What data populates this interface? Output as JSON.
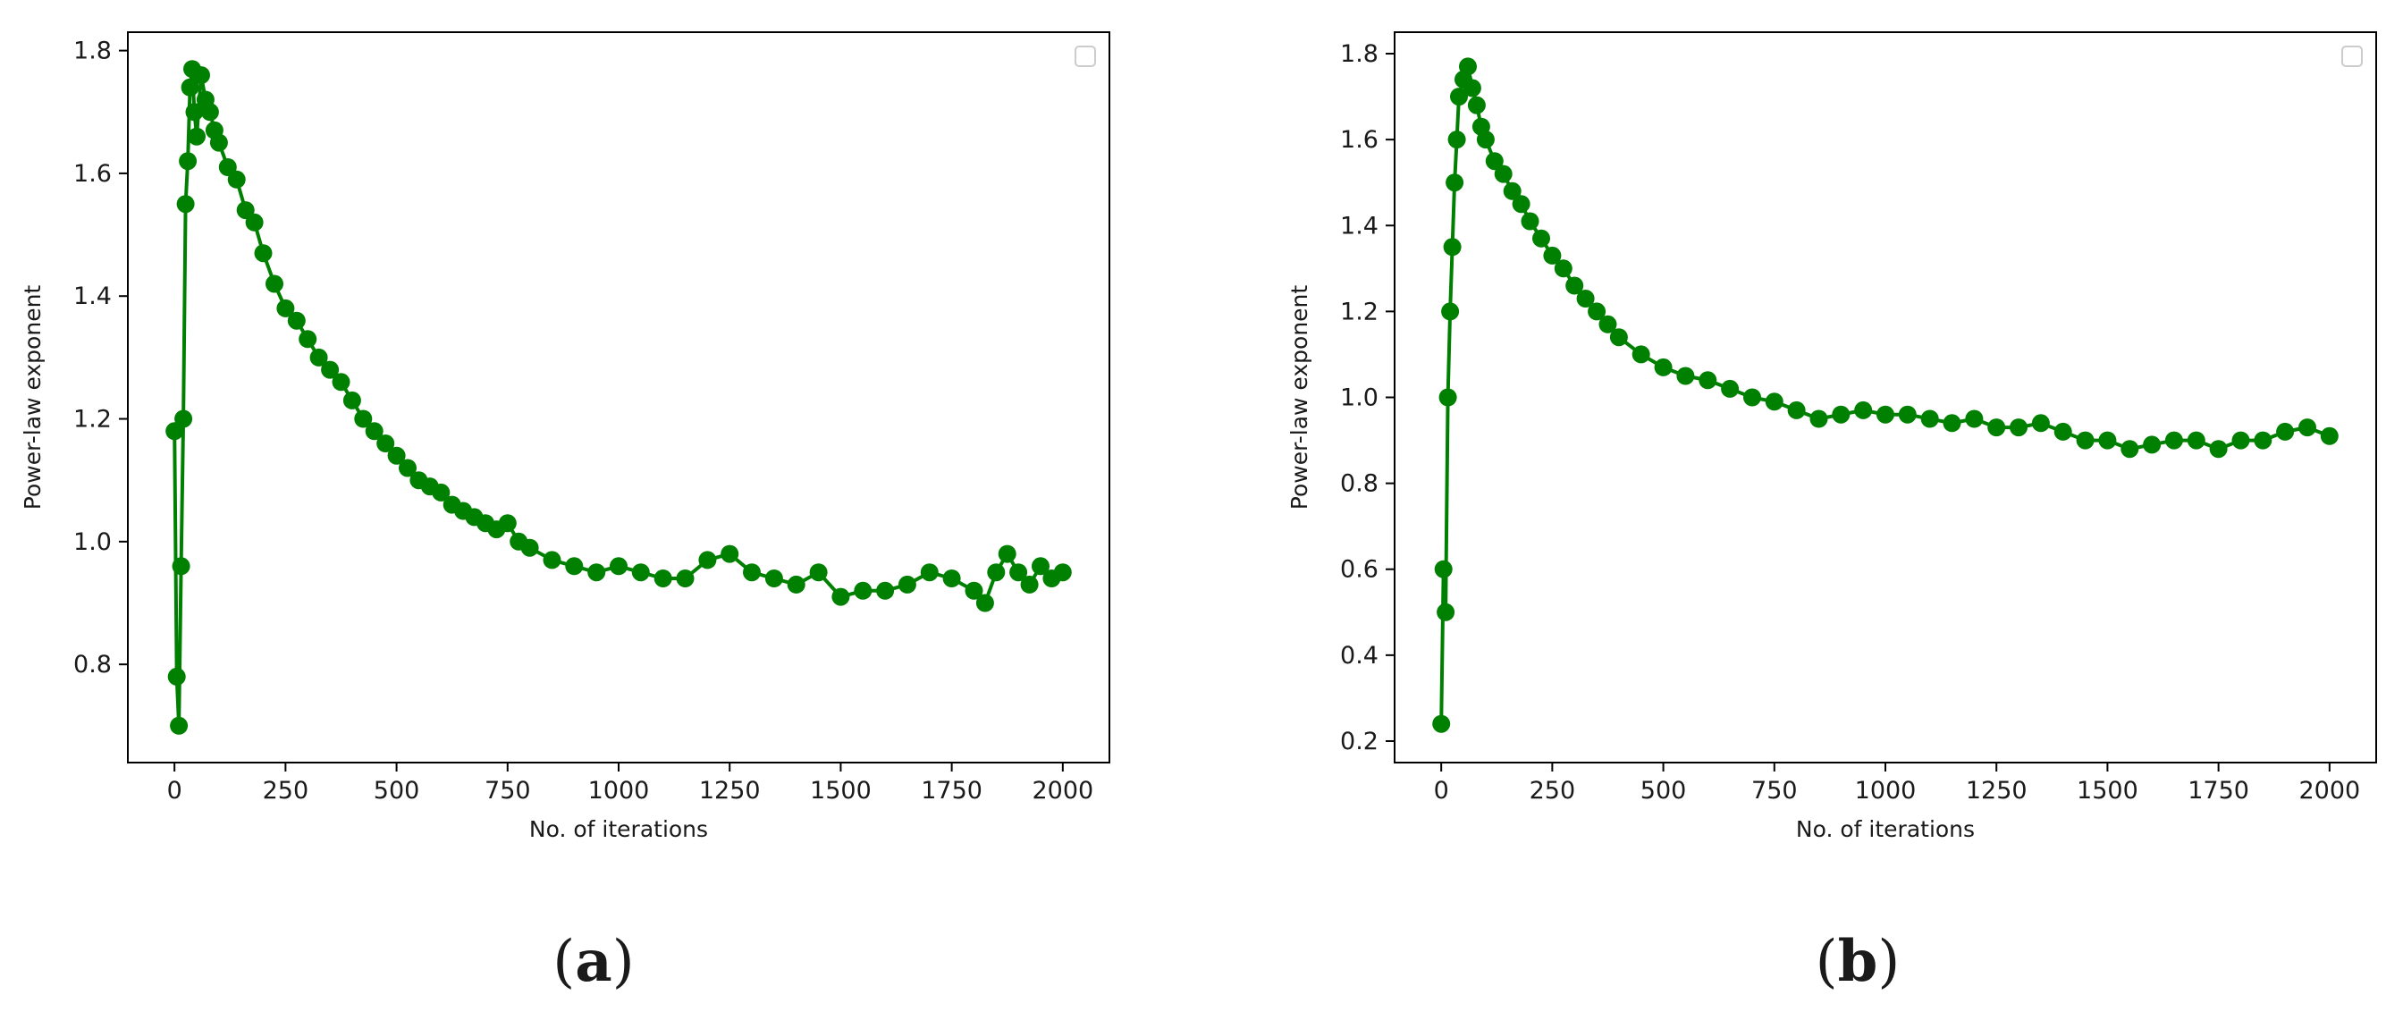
{
  "figure": {
    "panels": [
      {
        "caption_open": "(",
        "caption_letter": "a",
        "caption_close": ")"
      },
      {
        "caption_open": "(",
        "caption_letter": "b",
        "caption_close": ")"
      }
    ]
  },
  "chart_data": [
    {
      "type": "line",
      "marker": "circle",
      "color": "#008000",
      "title": "",
      "xlabel": "No. of iterations",
      "ylabel": "Power-law exponent",
      "xlim": [
        -105,
        2105
      ],
      "ylim": [
        0.64,
        1.83
      ],
      "xticks": [
        0,
        250,
        500,
        750,
        1000,
        1250,
        1500,
        1750,
        2000
      ],
      "xtick_labels": [
        "0",
        "250",
        "500",
        "750",
        "1000",
        "1250",
        "1500",
        "1750",
        "2000"
      ],
      "yticks": [
        0.8,
        1.0,
        1.2,
        1.4,
        1.6,
        1.8
      ],
      "ytick_labels": [
        "0.8",
        "1.0",
        "1.2",
        "1.4",
        "1.6",
        "1.8"
      ],
      "legend": "top-right (empty)",
      "grid": false,
      "series": [
        {
          "x": [
            0,
            5,
            10,
            15,
            20,
            25,
            30,
            35,
            40,
            45,
            50,
            60,
            70,
            80,
            90,
            100,
            120,
            140,
            160,
            180,
            200,
            225,
            250,
            275,
            300,
            325,
            350,
            375,
            400,
            425,
            450,
            475,
            500,
            525,
            550,
            575,
            600,
            625,
            650,
            675,
            700,
            725,
            750,
            775,
            800,
            850,
            900,
            950,
            1000,
            1050,
            1100,
            1150,
            1200,
            1250,
            1300,
            1350,
            1400,
            1450,
            1500,
            1550,
            1600,
            1650,
            1700,
            1750,
            1800,
            1825,
            1850,
            1875,
            1900,
            1925,
            1950,
            1975,
            2000
          ],
          "y": [
            1.18,
            0.78,
            0.7,
            0.96,
            1.2,
            1.55,
            1.62,
            1.74,
            1.77,
            1.7,
            1.66,
            1.76,
            1.72,
            1.7,
            1.67,
            1.65,
            1.61,
            1.59,
            1.54,
            1.52,
            1.47,
            1.42,
            1.38,
            1.36,
            1.33,
            1.3,
            1.28,
            1.26,
            1.23,
            1.2,
            1.18,
            1.16,
            1.14,
            1.12,
            1.1,
            1.09,
            1.08,
            1.06,
            1.05,
            1.04,
            1.03,
            1.02,
            1.03,
            1.0,
            0.99,
            0.97,
            0.96,
            0.95,
            0.96,
            0.95,
            0.94,
            0.94,
            0.97,
            0.98,
            0.95,
            0.94,
            0.93,
            0.95,
            0.91,
            0.92,
            0.92,
            0.93,
            0.95,
            0.94,
            0.92,
            0.9,
            0.95,
            0.98,
            0.95,
            0.93,
            0.96,
            0.94,
            0.95
          ]
        }
      ]
    },
    {
      "type": "line",
      "marker": "circle",
      "color": "#008000",
      "title": "",
      "xlabel": "No. of iterations",
      "ylabel": "Power-law exponent",
      "xlim": [
        -105,
        2105
      ],
      "ylim": [
        0.15,
        1.85
      ],
      "xticks": [
        0,
        250,
        500,
        750,
        1000,
        1250,
        1500,
        1750,
        2000
      ],
      "xtick_labels": [
        "0",
        "250",
        "500",
        "750",
        "1000",
        "1250",
        "1500",
        "1750",
        "2000"
      ],
      "yticks": [
        0.2,
        0.4,
        0.6,
        0.8,
        1.0,
        1.2,
        1.4,
        1.6,
        1.8
      ],
      "ytick_labels": [
        "0.2",
        "0.4",
        "0.6",
        "0.8",
        "1.0",
        "1.2",
        "1.4",
        "1.6",
        "1.8"
      ],
      "legend": "top-right (empty)",
      "grid": false,
      "series": [
        {
          "x": [
            0,
            5,
            10,
            15,
            20,
            25,
            30,
            35,
            40,
            50,
            60,
            70,
            80,
            90,
            100,
            120,
            140,
            160,
            180,
            200,
            225,
            250,
            275,
            300,
            325,
            350,
            375,
            400,
            450,
            500,
            550,
            600,
            650,
            700,
            750,
            800,
            850,
            900,
            950,
            1000,
            1050,
            1100,
            1150,
            1200,
            1250,
            1300,
            1350,
            1400,
            1450,
            1500,
            1550,
            1600,
            1650,
            1700,
            1750,
            1800,
            1850,
            1900,
            1950,
            2000
          ],
          "y": [
            0.24,
            0.6,
            0.5,
            1.0,
            1.2,
            1.35,
            1.5,
            1.6,
            1.7,
            1.74,
            1.77,
            1.72,
            1.68,
            1.63,
            1.6,
            1.55,
            1.52,
            1.48,
            1.45,
            1.41,
            1.37,
            1.33,
            1.3,
            1.26,
            1.23,
            1.2,
            1.17,
            1.14,
            1.1,
            1.07,
            1.05,
            1.04,
            1.02,
            1.0,
            0.99,
            0.97,
            0.95,
            0.96,
            0.97,
            0.96,
            0.96,
            0.95,
            0.94,
            0.95,
            0.93,
            0.93,
            0.94,
            0.92,
            0.9,
            0.9,
            0.88,
            0.89,
            0.9,
            0.9,
            0.88,
            0.9,
            0.9,
            0.92,
            0.93,
            0.91
          ]
        }
      ]
    }
  ]
}
